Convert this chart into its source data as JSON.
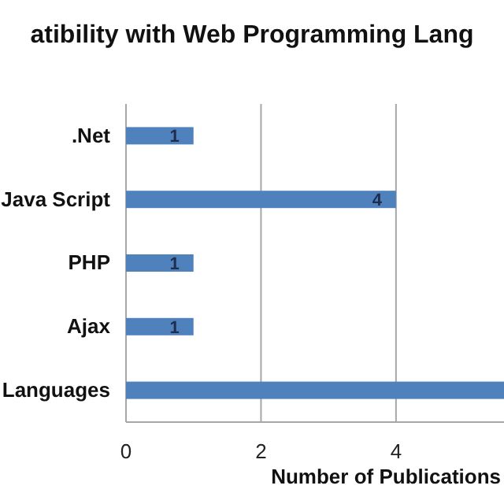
{
  "chart_data": {
    "type": "bar",
    "orientation": "horizontal",
    "title": "atibility with Web Programming Lang",
    "xlabel": "Number of Publications",
    "categories": [
      ".Net",
      "Java Script",
      "PHP",
      "Ajax",
      "Languages"
    ],
    "values": [
      1,
      4,
      1,
      1,
      5.6
    ],
    "value_labels": [
      "1",
      "4",
      "1",
      "1",
      null
    ],
    "color": "#4f81bd",
    "xlim": [
      0,
      5.6
    ],
    "xticks": [
      0,
      2,
      4
    ],
    "grid": "x"
  }
}
